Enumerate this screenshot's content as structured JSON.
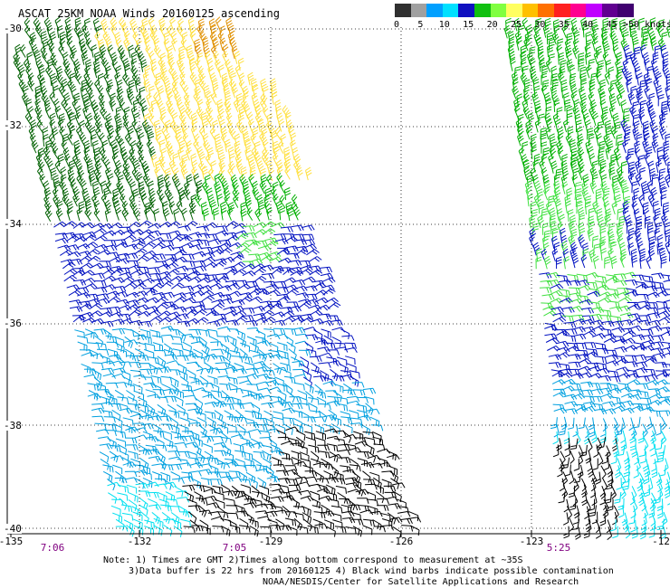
{
  "title": "ASCAT 25KM NOAA Winds 20160125 ascending",
  "legend": {
    "units": "knots",
    "labels": [
      "0",
      "5",
      "10",
      "15",
      "20",
      "25",
      "30",
      "35",
      "40",
      "45",
      ">50 knots"
    ],
    "colors": [
      "#303030",
      "#a0a0a0",
      "#00a0ff",
      "#00e0ff",
      "#1010c0",
      "#10c010",
      "#80ff40",
      "#ffff60",
      "#ffc000",
      "#ff7000",
      "#ff2020",
      "#ff0090",
      "#c000ff",
      "#600090",
      "#400070"
    ]
  },
  "axes": {
    "lat_labels": [
      "-30",
      "-32",
      "-34",
      "-36",
      "-38",
      "-40"
    ],
    "lon_labels": [
      "-135",
      "-132",
      "-129",
      "-126",
      "-123",
      "-12"
    ]
  },
  "pass_times": [
    "7:06",
    "7:05",
    "5:25"
  ],
  "notes": {
    "line1": "Note: 1) Times are GMT 2)Times along bottom correspond to measurement at ~35S",
    "line2": "3)Data buffer is 22 hrs from 20160125 4) Black wind barbs indicate possible contamination",
    "line3": "NOAA/NESDIS/Center for Satellite Applications and Research"
  },
  "barb_colors": {
    "yellow": "#ffe040",
    "orange": "#e09000",
    "dark_green": "#006000",
    "green": "#00b000",
    "light_green": "#40e040",
    "blue": "#0010c0",
    "cyan_blue": "#00a0e0",
    "cyan": "#00e0f0",
    "black": "#000000"
  }
}
